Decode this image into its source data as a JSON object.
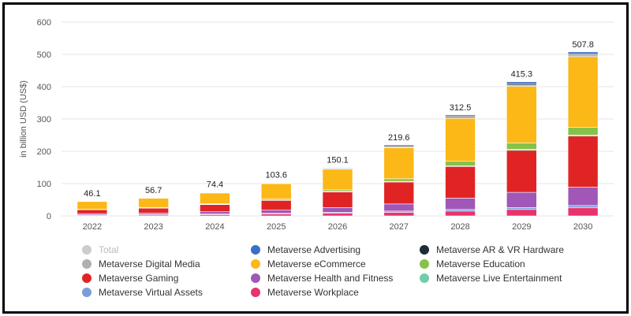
{
  "chart_data": {
    "type": "bar",
    "stacked": true,
    "categories": [
      "2022",
      "2023",
      "2024",
      "2025",
      "2026",
      "2027",
      "2028",
      "2029",
      "2030"
    ],
    "totals": [
      46.1,
      56.7,
      74.4,
      103.6,
      150.1,
      219.6,
      312.5,
      415.3,
      507.8
    ],
    "ylabel": "in billion USD (US$)",
    "ylim": [
      0,
      600
    ],
    "yticks": [
      0,
      100,
      200,
      300,
      400,
      500,
      600
    ],
    "grid": true,
    "legend_position": "bottom",
    "series": [
      {
        "name": "Metaverse Workplace",
        "color": "#e8336d",
        "values": [
          2,
          3,
          4,
          6,
          8,
          11,
          15,
          20,
          25
        ]
      },
      {
        "name": "Metaverse Virtual Assets",
        "color": "#7a9fd8",
        "values": [
          1,
          1,
          2,
          2,
          3,
          4,
          5,
          6,
          7
        ]
      },
      {
        "name": "Metaverse Health and Fitness",
        "color": "#a057b8",
        "values": [
          4,
          5,
          7,
          10,
          15,
          22,
          35,
          47,
          57
        ]
      },
      {
        "name": "Metaverse Gaming",
        "color": "#e02424",
        "values": [
          12,
          15,
          22,
          30,
          48,
          68,
          98,
          130,
          158
        ]
      },
      {
        "name": "Metaverse Live Entertainment",
        "color": "#6fcfa9",
        "values": [
          0.5,
          0.5,
          1,
          1,
          1.5,
          2,
          2,
          3,
          3
        ]
      },
      {
        "name": "Metaverse Education",
        "color": "#86c24a",
        "values": [
          1,
          2,
          2,
          3,
          5,
          8,
          14,
          20,
          24
        ]
      },
      {
        "name": "Metaverse eCommerce",
        "color": "#fbb816",
        "values": [
          24,
          28,
          33,
          48,
          64,
          96,
          133,
          175,
          219
        ]
      },
      {
        "name": "Metaverse Digital Media",
        "color": "#b0b0b0",
        "values": [
          0.8,
          1,
          1.5,
          1.6,
          2.1,
          2.6,
          3.5,
          4.3,
          5.8
        ]
      },
      {
        "name": "Metaverse AR & VR Hardware",
        "color": "#1d2b3a",
        "values": [
          0.3,
          0.6,
          1,
          1.2,
          2,
          3,
          3.5,
          4.5,
          3.5
        ]
      },
      {
        "name": "Metaverse Advertising",
        "color": "#3d6fc9",
        "values": [
          0.5,
          0.6,
          0.9,
          0.8,
          1.5,
          3,
          3.5,
          5.5,
          5.5
        ]
      }
    ]
  },
  "legend": [
    {
      "label": "Total",
      "color": "#cccccc",
      "muted": true
    },
    {
      "label": "Metaverse Advertising",
      "color": "#3d6fc9"
    },
    {
      "label": "Metaverse AR & VR Hardware",
      "color": "#1d2b3a"
    },
    {
      "label": "Metaverse Digital Media",
      "color": "#b0b0b0"
    },
    {
      "label": "Metaverse eCommerce",
      "color": "#fbb816"
    },
    {
      "label": "Metaverse Education",
      "color": "#86c24a"
    },
    {
      "label": "Metaverse Gaming",
      "color": "#e02424"
    },
    {
      "label": "Metaverse Health and Fitness",
      "color": "#a057b8"
    },
    {
      "label": "Metaverse Live Entertainment",
      "color": "#6fcfa9"
    },
    {
      "label": "Metaverse Virtual Assets",
      "color": "#7a9fd8"
    },
    {
      "label": "Metaverse Workplace",
      "color": "#e8336d"
    }
  ]
}
